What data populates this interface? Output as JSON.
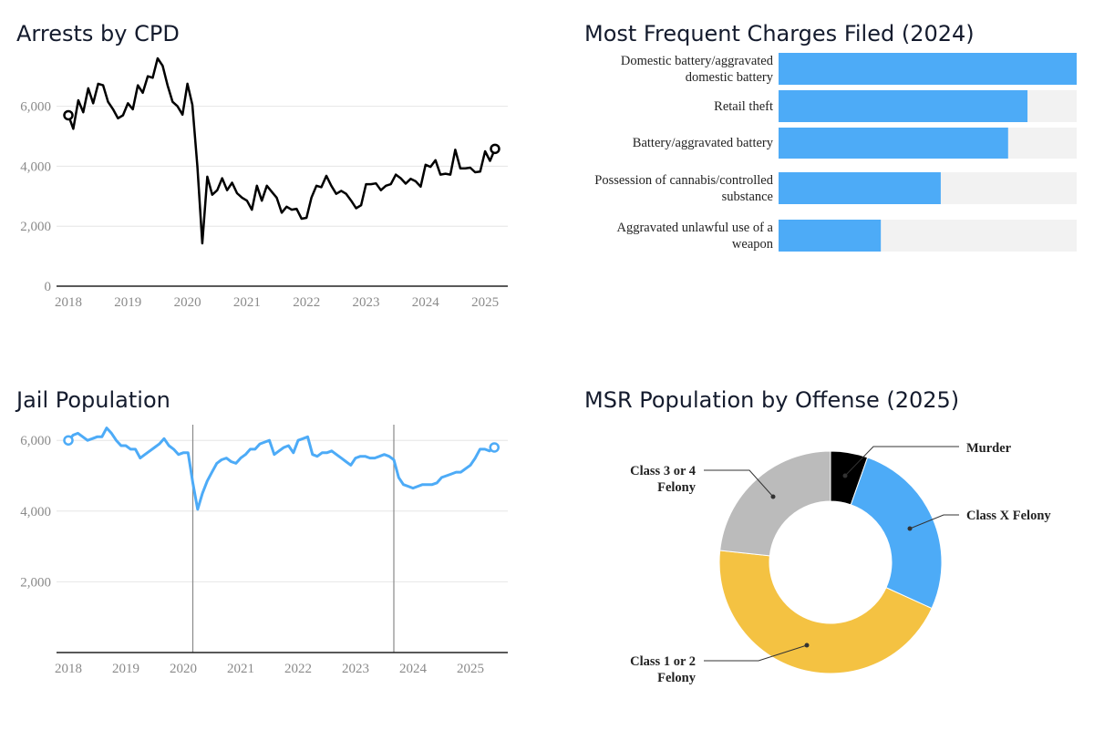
{
  "chart_data": [
    {
      "type": "line",
      "title": "Arrests by CPD",
      "x_ticks": [
        "2018",
        "2019",
        "2020",
        "2021",
        "2022",
        "2023",
        "2024",
        "2025"
      ],
      "y_ticks": [
        "0",
        "2,000",
        "4,000",
        "6,000"
      ],
      "ylim": [
        0,
        7600
      ],
      "grid": true,
      "line_color": "#000000",
      "x_start": "2018-01",
      "x_frequency": "monthly",
      "values": [
        5700,
        5250,
        6200,
        5800,
        6600,
        6100,
        6750,
        6700,
        6150,
        5900,
        5600,
        5700,
        6100,
        5900,
        6700,
        6450,
        7000,
        6950,
        7600,
        7350,
        6700,
        6150,
        6000,
        5720,
        6750,
        6050,
        4000,
        1430,
        3650,
        3050,
        3200,
        3600,
        3200,
        3450,
        3100,
        2950,
        2850,
        2550,
        3350,
        2850,
        3350,
        3150,
        2950,
        2450,
        2650,
        2550,
        2580,
        2250,
        2280,
        2950,
        3350,
        3300,
        3680,
        3350,
        3080,
        3180,
        3080,
        2850,
        2600,
        2700,
        3400,
        3400,
        3430,
        3200,
        3350,
        3400,
        3720,
        3600,
        3420,
        3580,
        3500,
        3320,
        4050,
        3980,
        4200,
        3720,
        3750,
        3720,
        4550,
        3930,
        3930,
        3950,
        3800,
        3820,
        4500,
        4180,
        4580
      ]
    },
    {
      "type": "bar",
      "orientation": "horizontal",
      "title": "Most Frequent Charges Filed (2024)",
      "bar_color": "#4dabf7",
      "track_color": "#f2f2f2",
      "categories": [
        "Domestic battery/aggravated domestic battery",
        "Retail theft",
        "Battery/aggravated battery",
        "Possession of cannabis/controlled substance",
        "Aggravated unlawful use of a weapon"
      ],
      "values_relative_to_max": [
        1.0,
        0.835,
        0.77,
        0.544,
        0.343
      ]
    },
    {
      "type": "line",
      "title": "Jail Population",
      "x_ticks": [
        "2018",
        "2019",
        "2020",
        "2021",
        "2022",
        "2023",
        "2024",
        "2025"
      ],
      "y_ticks": [
        "2,000",
        "4,000",
        "6,000"
      ],
      "ylim": [
        0,
        6600
      ],
      "grid": true,
      "line_color": "#4dabf7",
      "x_start": "2018-01",
      "x_frequency": "monthly",
      "reference_lines": [
        "2020-03",
        "2023-09"
      ],
      "values": [
        6000,
        6150,
        6200,
        6100,
        6000,
        6050,
        6100,
        6100,
        6350,
        6200,
        6000,
        5850,
        5850,
        5750,
        5750,
        5500,
        5600,
        5700,
        5800,
        5900,
        6050,
        5850,
        5750,
        5600,
        5650,
        5650,
        4800,
        4050,
        4500,
        4850,
        5100,
        5350,
        5450,
        5500,
        5400,
        5350,
        5500,
        5600,
        5750,
        5750,
        5900,
        5950,
        6000,
        5600,
        5700,
        5800,
        5850,
        5650,
        6000,
        6050,
        6100,
        5600,
        5550,
        5650,
        5650,
        5700,
        5600,
        5500,
        5400,
        5300,
        5500,
        5550,
        5550,
        5500,
        5500,
        5550,
        5600,
        5550,
        5450,
        4950,
        4750,
        4700,
        4650,
        4700,
        4750,
        4750,
        4750,
        4800,
        4950,
        5000,
        5050,
        5100,
        5100,
        5200,
        5300,
        5500,
        5750,
        5750,
        5700,
        5800
      ]
    },
    {
      "type": "pie",
      "donut": true,
      "title": "MSR Population by Offense (2025)",
      "slices": [
        {
          "label": "Murder",
          "percent": 5.4,
          "color": "#000000"
        },
        {
          "label": "Class X Felony",
          "percent": 26.4,
          "color": "#4dabf7"
        },
        {
          "label": "Class 1 or 2 Felony",
          "percent": 44.9,
          "color": "#f4c242"
        },
        {
          "label": "Class 3 or 4 Felony",
          "percent": 23.3,
          "color": "#bbbbbb"
        }
      ]
    }
  ]
}
